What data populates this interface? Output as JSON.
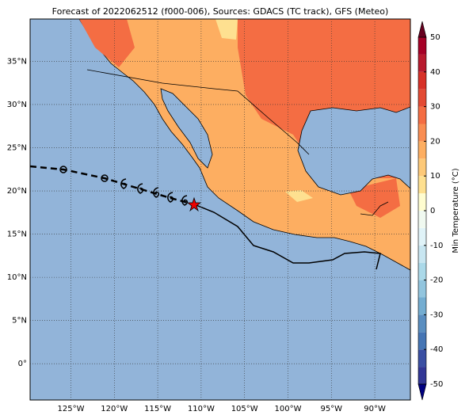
{
  "map": {
    "title": "Forecast of 2022062512 (f000-006), Sources: GDACS (TC track), GFS (Meteo)",
    "lon_range": [
      -129.7,
      -85.9
    ],
    "lat_range": [
      -4.2,
      39.9
    ],
    "lon_ticks": [
      {
        "value": -125,
        "label": "125°W"
      },
      {
        "value": -120,
        "label": "120°W"
      },
      {
        "value": -115,
        "label": "115°W"
      },
      {
        "value": -110,
        "label": "110°W"
      },
      {
        "value": -105,
        "label": "105°W"
      },
      {
        "value": -100,
        "label": "100°W"
      },
      {
        "value": -95,
        "label": "95°W"
      },
      {
        "value": -90,
        "label": "90°W"
      }
    ],
    "lat_ticks": [
      {
        "value": 0,
        "label": "0°"
      },
      {
        "value": 5,
        "label": "5°N"
      },
      {
        "value": 10,
        "label": "10°N"
      },
      {
        "value": 15,
        "label": "15°N"
      },
      {
        "value": 20,
        "label": "20°N"
      },
      {
        "value": 25,
        "label": "25°N"
      },
      {
        "value": 30,
        "label": "30°N"
      },
      {
        "value": 35,
        "label": "35°N"
      }
    ]
  },
  "colorbar": {
    "label": "Min Temperature (°C)",
    "range": [
      -50,
      50
    ],
    "ticks": [
      -50,
      -40,
      -30,
      -20,
      -10,
      0,
      10,
      20,
      30,
      40,
      50
    ],
    "colors": [
      "#313695",
      "#3a4fa3",
      "#4575b4",
      "#5a8ec0",
      "#74add1",
      "#92c5de",
      "#abd9e9",
      "#c8e6f1",
      "#e0f3f8",
      "#f0f9f0",
      "#fffdd0",
      "#fee090",
      "#fdc978",
      "#fdae61",
      "#f98d52",
      "#f46d43",
      "#e34a33",
      "#d73027",
      "#b81a2e",
      "#a50026"
    ]
  }
}
